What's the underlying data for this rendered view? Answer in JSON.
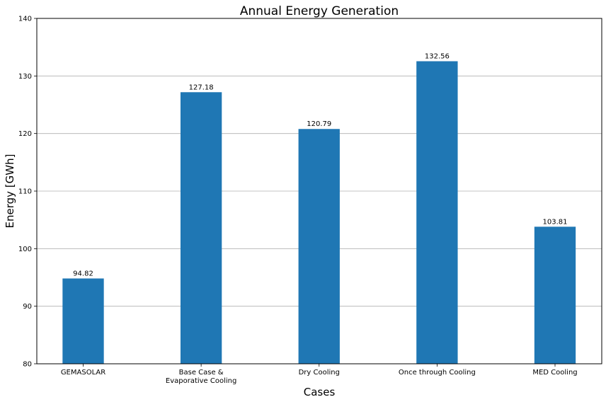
{
  "chart_data": {
    "type": "bar",
    "title": "Annual Energy Generation",
    "xlabel": "Cases",
    "ylabel": "Energy [GWh]",
    "categories": [
      [
        "GEMASOLAR"
      ],
      [
        "Base Case &",
        "Evaporative Cooling"
      ],
      [
        "Dry Cooling"
      ],
      [
        "Once through Cooling"
      ],
      [
        "MED Cooling"
      ]
    ],
    "values": [
      94.82,
      127.18,
      120.79,
      132.56,
      103.81
    ],
    "data_labels": [
      "94.82",
      "127.18",
      "120.79",
      "132.56",
      "103.81"
    ],
    "ylim": [
      80,
      140
    ],
    "yticks": [
      80,
      90,
      100,
      110,
      120,
      130,
      140
    ],
    "grid": "horizontal",
    "bar_color": "#1f77b4"
  }
}
